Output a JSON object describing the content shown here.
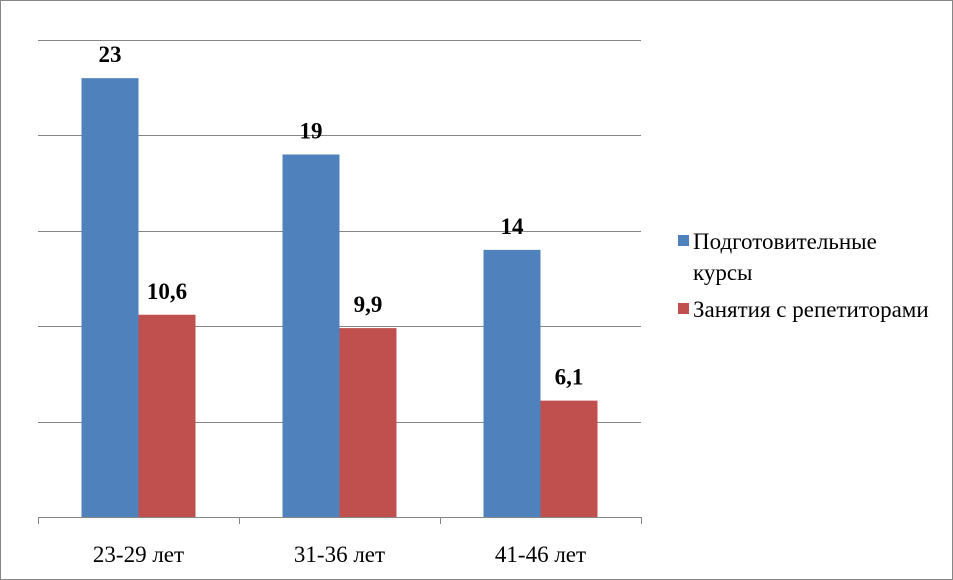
{
  "chart_data": {
    "type": "bar",
    "categories": [
      "23-29 лет",
      "31-36 лет",
      "41-46 лет"
    ],
    "series": [
      {
        "name": "Подготовительные курсы",
        "color": "#4F81BD",
        "values": [
          23,
          19,
          14
        ],
        "labels": [
          "23",
          "19",
          "14"
        ]
      },
      {
        "name": "Занятия с репетиторами",
        "color": "#C0504D",
        "values": [
          10.6,
          9.9,
          6.1
        ],
        "labels": [
          "10,6",
          "9,9",
          "6,1"
        ]
      }
    ],
    "ylim": [
      0,
      25
    ],
    "y_gridlines": [
      5,
      10,
      15,
      20,
      25
    ],
    "grid": true,
    "legend_position": "right"
  }
}
